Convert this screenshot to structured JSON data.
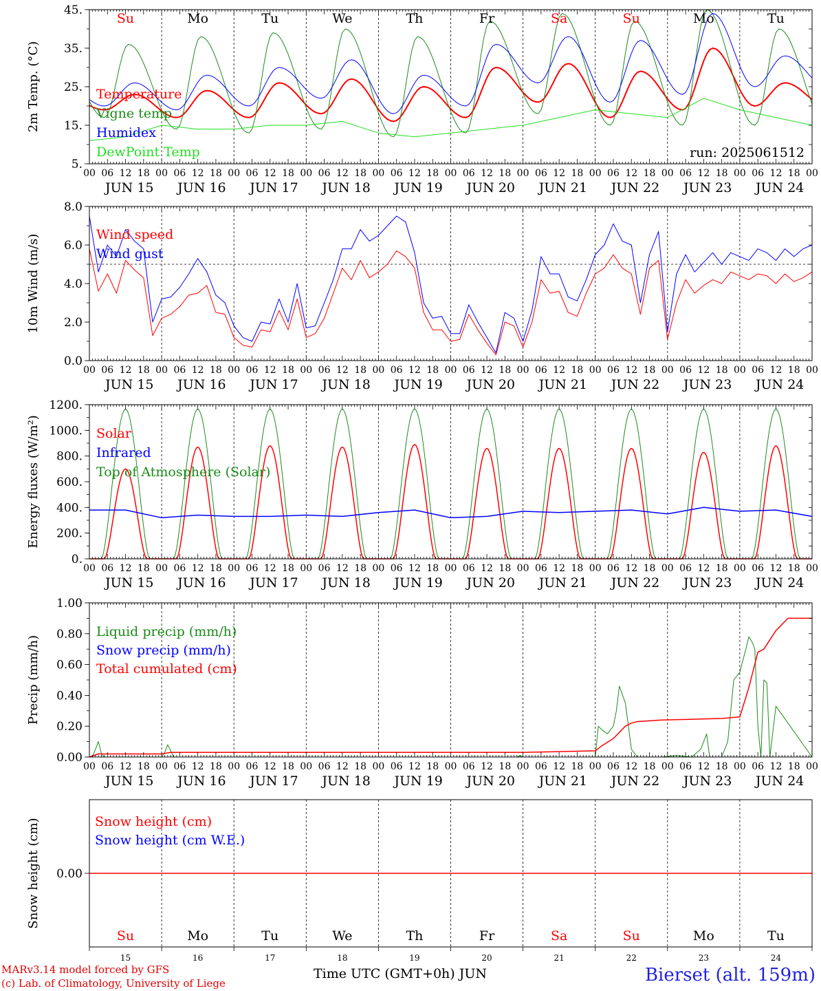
{
  "run_label": "run: 2025061512",
  "footer": {
    "model": "MARv3.14 model forced by GFS",
    "lab": "(c) Lab. of Climatology, University of Liege",
    "station": "Bierset (alt. 159m)",
    "xlabel": "Time UTC (GMT+0h) JUN"
  },
  "colors": {
    "red": "#ff0000",
    "blue": "#0000ff",
    "green": "#1a8a1a",
    "lightgreen": "#22dd22",
    "black": "#000000"
  },
  "chart_data": {
    "type": "line",
    "x_hours": [
      0,
      240
    ],
    "day_labels": [
      "JUN 15",
      "JUN 16",
      "JUN 17",
      "JUN 18",
      "JUN 19",
      "JUN 20",
      "JUN 21",
      "JUN 22",
      "JUN 23",
      "JUN 24"
    ],
    "weekdays": [
      "Su",
      "Mo",
      "Tu",
      "We",
      "Th",
      "Fr",
      "Sa",
      "Su",
      "Mo",
      "Tu"
    ],
    "weekday_red": [
      true,
      false,
      false,
      false,
      false,
      false,
      true,
      true,
      false,
      false
    ],
    "hour_ticks": [
      "00",
      "06",
      "12",
      "18"
    ],
    "day_numbers": [
      "15",
      "16",
      "17",
      "18",
      "19",
      "20",
      "21",
      "22",
      "23",
      "24"
    ],
    "panels": [
      {
        "id": "temp",
        "ylabel": "2m Temp. (°C)",
        "ylim": [
          5,
          45
        ],
        "yticks": [
          5,
          15,
          25,
          35,
          45
        ],
        "ytick_labels": [
          "5.",
          "15.",
          "25.",
          "35.",
          "45."
        ],
        "legend": [
          {
            "name": "Temperature",
            "color": "#ff0000"
          },
          {
            "name": "Vigne temp",
            "color": "#1a8a1a"
          },
          {
            "name": "Humidex",
            "color": "#0000ff"
          },
          {
            "name": "DewPoint Temp",
            "color": "#22dd22"
          }
        ],
        "series": [
          {
            "name": "Temperature",
            "color": "#ff0000",
            "width": 2,
            "mode": "diurnal",
            "min": [
              19,
              17,
              17,
              18,
              16,
              17,
              21,
              17,
              19,
              20
            ],
            "minHour": 5,
            "max": [
              23,
              24,
              26,
              27,
              25,
              30,
              31,
              29,
              35,
              26
            ],
            "maxHour": 15
          },
          {
            "name": "Vigne temp",
            "color": "#1a8a1a",
            "width": 1,
            "mode": "diurnal",
            "min": [
              17,
              14,
              13,
              14,
              12,
              13,
              18,
              15,
              15,
              15
            ],
            "minHour": 5,
            "max": [
              36,
              38,
              39,
              40,
              38,
              42,
              44,
              42,
              45,
              40
            ],
            "maxHour": 13
          },
          {
            "name": "Humidex",
            "color": "#0000ff",
            "width": 1,
            "mode": "diurnal",
            "min": [
              20,
              19,
              20,
              22,
              18,
              20,
              26,
              21,
              23,
              25
            ],
            "minHour": 5,
            "max": [
              26,
              28,
              30,
              32,
              28,
              36,
              38,
              37,
              44,
              33
            ],
            "maxHour": 15
          },
          {
            "name": "DewPoint Temp",
            "color": "#22dd22",
            "width": 1,
            "mode": "points",
            "x": [
              0,
              12,
              24,
              36,
              48,
              60,
              72,
              84,
              96,
              108,
              120,
              132,
              144,
              156,
              168,
              180,
              192,
              204,
              216,
              228,
              240
            ],
            "y": [
              11,
              12,
              15,
              14,
              14,
              15,
              15,
              16,
              13,
              12,
              13,
              14,
              15,
              17,
              19,
              18,
              17,
              22,
              19,
              17,
              15
            ]
          }
        ]
      },
      {
        "id": "wind",
        "ylabel": "10m Wind (m/s)",
        "ylim": [
          0,
          8
        ],
        "yticks": [
          0,
          2,
          4,
          6,
          8
        ],
        "ytick_labels": [
          "0.0",
          "2.0",
          "4.0",
          "6.0",
          "8.0"
        ],
        "hline": 5,
        "legend": [
          {
            "name": "Wind speed",
            "color": "#ff0000"
          },
          {
            "name": "Wind gust",
            "color": "#0000ff"
          }
        ],
        "series": [
          {
            "name": "Wind speed",
            "color": "#ff0000",
            "width": 1,
            "mode": "points",
            "x": [
              0,
              3,
              6,
              9,
              12,
              15,
              18,
              21,
              24,
              27,
              30,
              33,
              36,
              39,
              42,
              45,
              48,
              51,
              54,
              57,
              60,
              63,
              66,
              69,
              72,
              75,
              78,
              81,
              84,
              87,
              90,
              93,
              96,
              99,
              102,
              105,
              108,
              111,
              114,
              117,
              120,
              123,
              126,
              129,
              132,
              135,
              138,
              141,
              144,
              147,
              150,
              153,
              156,
              159,
              162,
              165,
              168,
              171,
              174,
              177,
              180,
              183,
              186,
              189,
              192,
              195,
              198,
              201,
              204,
              207,
              210,
              213,
              216,
              219,
              222,
              225,
              228,
              231,
              234,
              237,
              240
            ],
            "y": [
              5.8,
              3.6,
              4.5,
              3.5,
              5.2,
              4.7,
              4.3,
              1.3,
              2.2,
              2.4,
              2.8,
              3.4,
              3.5,
              3.9,
              2.5,
              2.4,
              1.2,
              0.8,
              0.7,
              1.6,
              1.5,
              2.6,
              1.6,
              3.2,
              1.2,
              1.4,
              2.2,
              3.5,
              4.8,
              4.2,
              5.2,
              4.3,
              4.6,
              5.0,
              5.7,
              5.4,
              4.8,
              2.5,
              1.6,
              1.6,
              1.0,
              1.1,
              2.4,
              1.6,
              0.9,
              0.3,
              2.0,
              1.8,
              0.7,
              2.0,
              4.2,
              3.5,
              3.6,
              2.5,
              2.3,
              3.5,
              4.5,
              4.8,
              5.5,
              4.8,
              4.5,
              2.4,
              4.8,
              5.2,
              1.1,
              3.0,
              4.2,
              3.5,
              3.9,
              4.2,
              4.0,
              4.6,
              4.4,
              4.2,
              4.5,
              4.4,
              4.0,
              4.5,
              4.1,
              4.3,
              4.6
            ]
          },
          {
            "name": "Wind gust",
            "color": "#0000ff",
            "width": 1,
            "mode": "points",
            "x": [
              0,
              3,
              6,
              9,
              12,
              15,
              18,
              21,
              24,
              27,
              30,
              33,
              36,
              39,
              42,
              45,
              48,
              51,
              54,
              57,
              60,
              63,
              66,
              69,
              72,
              75,
              78,
              81,
              84,
              87,
              90,
              93,
              96,
              99,
              102,
              105,
              108,
              111,
              114,
              117,
              120,
              123,
              126,
              129,
              132,
              135,
              138,
              141,
              144,
              147,
              150,
              153,
              156,
              159,
              162,
              165,
              168,
              171,
              174,
              177,
              180,
              183,
              186,
              189,
              192,
              195,
              198,
              201,
              204,
              207,
              210,
              213,
              216,
              219,
              222,
              225,
              228,
              231,
              234,
              237,
              240
            ],
            "y": [
              7.5,
              4.6,
              6.0,
              5.4,
              6.8,
              6.2,
              5.8,
              2.0,
              3.2,
              3.3,
              3.8,
              4.5,
              5.3,
              4.6,
              3.4,
              3.0,
              1.8,
              1.2,
              1.0,
              2.0,
              1.9,
              3.2,
              2.0,
              4.0,
              1.7,
              1.8,
              3.0,
              4.2,
              5.8,
              5.8,
              6.8,
              6.2,
              6.5,
              7.0,
              7.5,
              7.2,
              5.6,
              3.0,
              2.2,
              2.3,
              1.4,
              1.4,
              2.9,
              2.0,
              1.2,
              0.4,
              2.5,
              2.2,
              1.0,
              2.6,
              5.4,
              4.5,
              4.5,
              3.3,
              3.1,
              4.2,
              5.5,
              6.0,
              7.1,
              6.2,
              6.0,
              3.0,
              5.5,
              6.7,
              1.5,
              4.5,
              5.5,
              4.6,
              5.1,
              5.6,
              5.0,
              5.6,
              5.4,
              5.2,
              5.8,
              5.6,
              5.2,
              5.8,
              5.4,
              5.8,
              6.0
            ]
          }
        ]
      },
      {
        "id": "flux",
        "ylabel": "Energy fluxes (W/m²)",
        "ylim": [
          0,
          1200
        ],
        "yticks": [
          0,
          200,
          400,
          600,
          800,
          1000,
          1200
        ],
        "ytick_labels": [
          "0.",
          "200.",
          "400.",
          "600.",
          "800.",
          "1000.",
          "1200."
        ],
        "legend": [
          {
            "name": "Solar",
            "color": "#ff0000"
          },
          {
            "name": "Infrared",
            "color": "#0000ff"
          },
          {
            "name": "Top of Atmosphere (Solar)",
            "color": "#1a8a1a"
          }
        ],
        "series": [
          {
            "name": "Top of Atmosphere (Solar)",
            "color": "#1a8a1a",
            "width": 1,
            "mode": "solar",
            "peaks": [
              1165,
              1165,
              1165,
              1165,
              1165,
              1165,
              1165,
              1165,
              1165,
              1165
            ],
            "start": 4,
            "end": 20
          },
          {
            "name": "Solar",
            "color": "#ff0000",
            "width": 1.5,
            "mode": "solar",
            "peaks": [
              700,
              870,
              880,
              870,
              890,
              860,
              860,
              860,
              830,
              880
            ],
            "start": 5,
            "end": 19
          },
          {
            "name": "Infrared",
            "color": "#0000ff",
            "width": 1.5,
            "mode": "points",
            "x": [
              0,
              12,
              24,
              36,
              48,
              60,
              72,
              84,
              96,
              108,
              120,
              132,
              144,
              156,
              168,
              180,
              192,
              204,
              216,
              228,
              240
            ],
            "y": [
              380,
              380,
              320,
              340,
              330,
              330,
              340,
              330,
              360,
              380,
              320,
              330,
              370,
              360,
              370,
              380,
              350,
              400,
              370,
              380,
              330
            ]
          }
        ]
      },
      {
        "id": "precip",
        "ylabel": "Precip (mm/h)",
        "ylim": [
          0,
          1
        ],
        "yticks": [
          0,
          0.2,
          0.4,
          0.6,
          0.8,
          1.0
        ],
        "ytick_labels": [
          "0.00",
          "0.20",
          "0.40",
          "0.60",
          "0.80",
          "1.00"
        ],
        "legend": [
          {
            "name": "Liquid precip (mm/h)",
            "color": "#1a8a1a"
          },
          {
            "name": "Snow precip (mm/h)",
            "color": "#0000ff"
          },
          {
            "name": "Total cumulated (cm)",
            "color": "#ff0000"
          }
        ],
        "series": [
          {
            "name": "Liquid precip (mm/h)",
            "color": "#1a8a1a",
            "width": 1,
            "mode": "points",
            "x": [
              0,
              1,
              2,
              3,
              4,
              5,
              6,
              24,
              25,
              26,
              27,
              28,
              120,
              142,
              143,
              144,
              168,
              169,
              170,
              172,
              174,
              175,
              176,
              178,
              180,
              182,
              186,
              190,
              195,
              200,
              203,
              205,
              206,
              208,
              210,
              212,
              214,
              216,
              218,
              219,
              220,
              221,
              222,
              223,
              224,
              225,
              226,
              228,
              240
            ],
            "y": [
              0,
              0,
              0.05,
              0.1,
              0.02,
              0,
              0,
              0,
              0.03,
              0.08,
              0.04,
              0,
              0,
              0,
              0.01,
              0,
              0,
              0.2,
              0.18,
              0.15,
              0.2,
              0.3,
              0.46,
              0.35,
              0.05,
              0,
              0,
              0,
              0.01,
              0,
              0.05,
              0.15,
              0,
              0,
              0,
              0.1,
              0.5,
              0.55,
              0.7,
              0.78,
              0.75,
              0.7,
              0.2,
              0,
              0.5,
              0.48,
              0,
              0.33,
              0
            ]
          },
          {
            "name": "Snow precip (mm/h)",
            "color": "#0000ff",
            "width": 1,
            "mode": "points",
            "x": [
              0,
              240
            ],
            "y": [
              0,
              0
            ]
          },
          {
            "name": "Total cumulated (cm)",
            "color": "#ff0000",
            "width": 1.5,
            "mode": "points",
            "x": [
              0,
              3,
              6,
              24,
              27,
              120,
              144,
              168,
              170,
              174,
              178,
              180,
              182,
              190,
              210,
              216,
              219,
              222,
              224,
              228,
              232,
              240
            ],
            "y": [
              0,
              0.02,
              0.02,
              0.02,
              0.03,
              0.03,
              0.03,
              0.04,
              0.07,
              0.12,
              0.2,
              0.22,
              0.23,
              0.24,
              0.25,
              0.26,
              0.45,
              0.68,
              0.7,
              0.82,
              0.9,
              0.9
            ]
          }
        ]
      },
      {
        "id": "snow",
        "ylabel": "Snow height (cm)",
        "ylim": [
          -1,
          1
        ],
        "yticks": [
          0
        ],
        "ytick_labels": [
          "0.00"
        ],
        "legend": [
          {
            "name": "Snow height (cm)",
            "color": "#ff0000"
          },
          {
            "name": "Snow height (cm W.E.)",
            "color": "#0000ff"
          }
        ],
        "series": [
          {
            "name": "Snow height (cm W.E.)",
            "color": "#0000ff",
            "width": 1,
            "mode": "points",
            "x": [
              0,
              240
            ],
            "y": [
              0,
              0
            ]
          },
          {
            "name": "Snow height (cm)",
            "color": "#ff0000",
            "width": 1.5,
            "mode": "points",
            "x": [
              0,
              240
            ],
            "y": [
              0,
              0
            ]
          }
        ]
      }
    ]
  }
}
